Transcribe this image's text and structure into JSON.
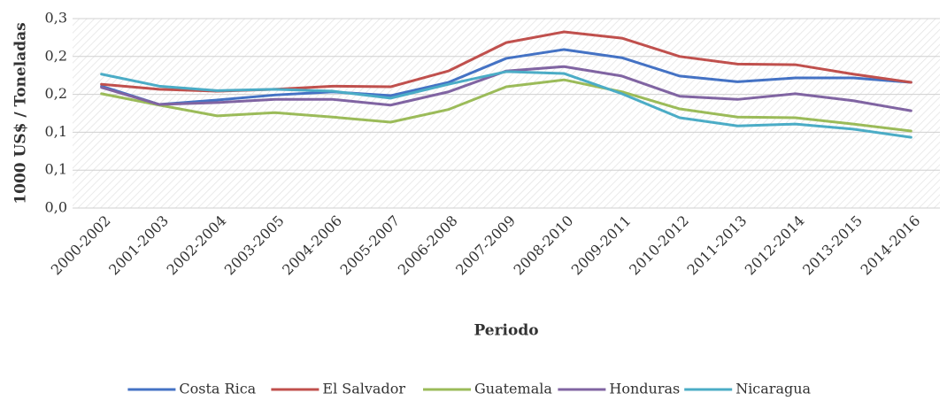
{
  "chart_data": {
    "type": "line",
    "x_label": "Periodo",
    "y_label": "1000 US$ / Toneladas",
    "categories": [
      "2000-2002",
      "2001-2003",
      "2002-2004",
      "2003-2005",
      "2004-2006",
      "2005-2007",
      "2006-2008",
      "2007-2009",
      "2008-2010",
      "2009-2011",
      "2010-2012",
      "2011-2013",
      "2012-2014",
      "2013-2015",
      "2014-2016"
    ],
    "series": [
      {
        "name": "Costa Rica",
        "color": "#4472c4",
        "values": [
          0.193,
          0.164,
          0.171,
          0.179,
          0.184,
          0.178,
          0.199,
          0.237,
          0.251,
          0.238,
          0.209,
          0.2,
          0.206,
          0.206,
          0.199
        ]
      },
      {
        "name": "El Salvador",
        "color": "#c0504d",
        "values": [
          0.196,
          0.188,
          0.185,
          0.188,
          0.193,
          0.192,
          0.217,
          0.262,
          0.279,
          0.269,
          0.24,
          0.228,
          0.227,
          0.212,
          0.199
        ]
      },
      {
        "name": "Guatemala",
        "color": "#9bbb59",
        "values": [
          0.181,
          0.163,
          0.146,
          0.151,
          0.144,
          0.136,
          0.156,
          0.192,
          0.203,
          0.184,
          0.157,
          0.144,
          0.143,
          0.133,
          0.122
        ]
      },
      {
        "name": "Honduras",
        "color": "#8064a2",
        "values": [
          0.191,
          0.164,
          0.167,
          0.172,
          0.172,
          0.163,
          0.184,
          0.217,
          0.224,
          0.209,
          0.177,
          0.172,
          0.181,
          0.17,
          0.154
        ]
      },
      {
        "name": "Nicaragua",
        "color": "#4bacc6",
        "values": [
          0.212,
          0.193,
          0.186,
          0.188,
          0.185,
          0.174,
          0.196,
          0.216,
          0.213,
          0.181,
          0.143,
          0.13,
          0.133,
          0.125,
          0.112
        ]
      }
    ],
    "ylim": [
      0,
      0.3
    ],
    "yticks": [
      {
        "value": 0,
        "label": "0,0"
      },
      {
        "value": 0.06,
        "label": "0,1"
      },
      {
        "value": 0.12,
        "label": "0,1"
      },
      {
        "value": 0.18,
        "label": "0,2"
      },
      {
        "value": 0.24,
        "label": "0,2"
      },
      {
        "value": 0.3,
        "label": "0,3"
      }
    ],
    "grid": true,
    "legend": "bottom"
  }
}
